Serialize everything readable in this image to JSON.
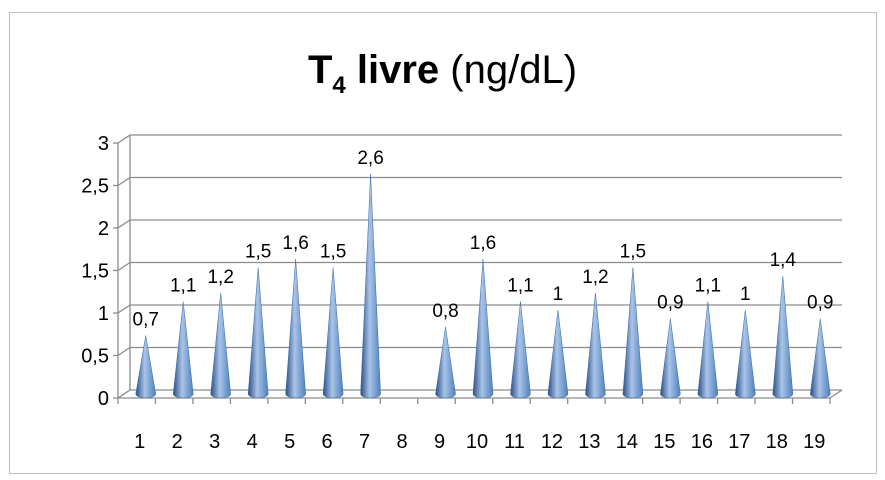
{
  "title": {
    "main": "T",
    "sub": "4",
    "bold_rest": " livre",
    "unit": " (ng/dL)"
  },
  "colors": {
    "cone_dark": "#2a4f86",
    "cone_mid": "#4f81bd",
    "cone_light": "#a9c4e8",
    "axis": "#8c8c8c",
    "grid": "#8c8c8c",
    "background": "#ffffff"
  },
  "chart_data": {
    "type": "bar",
    "bar_shape": "3d-cone",
    "title": "T4 livre (ng/dL)",
    "xlabel": "",
    "ylabel": "",
    "ylim": [
      0,
      3
    ],
    "yticks": [
      "0",
      "0,5",
      "1",
      "1,5",
      "2",
      "2,5",
      "3"
    ],
    "ytick_values": [
      0,
      0.5,
      1,
      1.5,
      2,
      2.5,
      3
    ],
    "grid": true,
    "legend": "none",
    "categories": [
      "1",
      "2",
      "3",
      "4",
      "5",
      "6",
      "7",
      "8",
      "9",
      "10",
      "11",
      "12",
      "13",
      "14",
      "15",
      "16",
      "17",
      "18",
      "19"
    ],
    "values": [
      0.7,
      1.1,
      1.2,
      1.5,
      1.6,
      1.5,
      2.6,
      null,
      0.8,
      1.6,
      1.1,
      1,
      1.2,
      1.5,
      0.9,
      1.1,
      1,
      1.4,
      0.9
    ],
    "data_labels": [
      "0,7",
      "1,1",
      "1,2",
      "1,5",
      "1,6",
      "1,5",
      "2,6",
      "",
      "0,8",
      "1,6",
      "1,1",
      "1",
      "1,2",
      "1,5",
      "0,9",
      "1,1",
      "1",
      "1,4",
      "0,9"
    ]
  }
}
